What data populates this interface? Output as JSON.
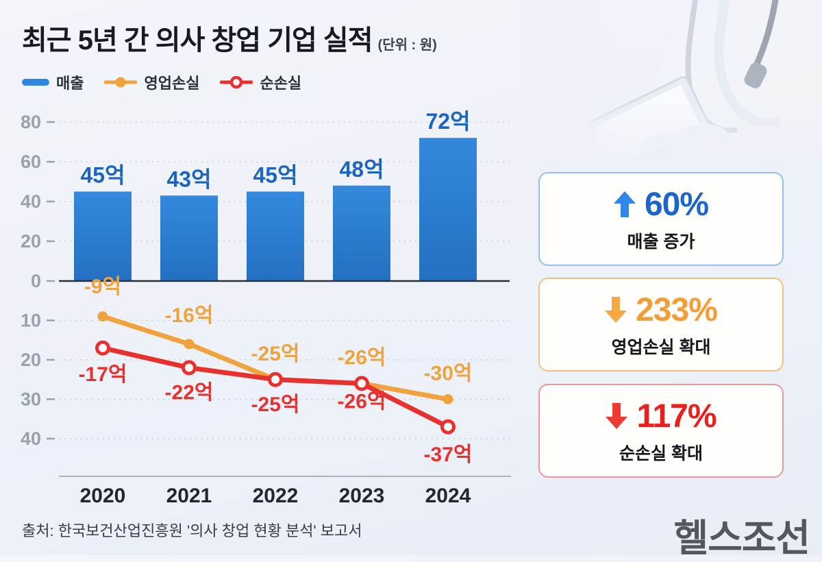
{
  "title": {
    "text": "최근 5년 간 의사 창업 기업 실적",
    "unit": "(단위 : 원)"
  },
  "legend": {
    "items": [
      {
        "label": "매출"
      },
      {
        "label": "영업손실"
      },
      {
        "label": "순손실"
      }
    ]
  },
  "chart_data": {
    "type": "bar+line",
    "title": "최근 5년 간 의사 창업 기업 실적",
    "unit": "원",
    "categories": [
      "2020",
      "2021",
      "2022",
      "2023",
      "2024"
    ],
    "series": [
      {
        "name": "매출",
        "type": "bar",
        "values": [
          45,
          43,
          45,
          48,
          72
        ],
        "labels": [
          "45억",
          "43억",
          "45억",
          "48억",
          "72억"
        ],
        "color_top": "#3389dc",
        "color_bottom": "#2470c2",
        "label_color": "#1b65c0"
      },
      {
        "name": "영업손실",
        "type": "line",
        "marker": "filled",
        "values": [
          -9,
          -16,
          -25,
          -26,
          -30
        ],
        "labels": [
          "-9억",
          "-16억",
          "-25억",
          "-26억",
          "-30억"
        ],
        "color": "#f0a23c"
      },
      {
        "name": "순손실",
        "type": "line",
        "marker": "open",
        "values": [
          -17,
          -22,
          -25,
          -26,
          -37
        ],
        "labels": [
          "-17억",
          "-22억",
          "-25억",
          "-26억",
          "-37억"
        ],
        "color": "#e8312e"
      }
    ],
    "y_axis": {
      "top_ticks": [
        0,
        20,
        40,
        60,
        80
      ],
      "bottom_ticks": [
        10,
        20,
        30,
        40
      ],
      "tick_color": "#9aa1ad",
      "grid": "dotted"
    },
    "legend_position": "top-left"
  },
  "cards": [
    {
      "direction": "up",
      "percent": "60%",
      "label": "매출 증가",
      "accent": "#1b66cc",
      "arrow_color": "#2f87e8",
      "border": "#8fc3ee"
    },
    {
      "direction": "down",
      "percent": "233%",
      "label": "영업손실 확대",
      "accent": "#f29d35",
      "arrow_color": "#f5a843",
      "border": "#f4be7f"
    },
    {
      "direction": "down",
      "percent": "117%",
      "label": "순손실 확대",
      "accent": "#e8201e",
      "arrow_color": "#ee3a30",
      "border": "#ea96a0"
    }
  ],
  "source": "출처: 한국보건산업진흥원 '의사 창업 현황 분석' 보고서",
  "logo": "헬스조선",
  "photo": {
    "icon": "doctor-holding-tablet"
  }
}
